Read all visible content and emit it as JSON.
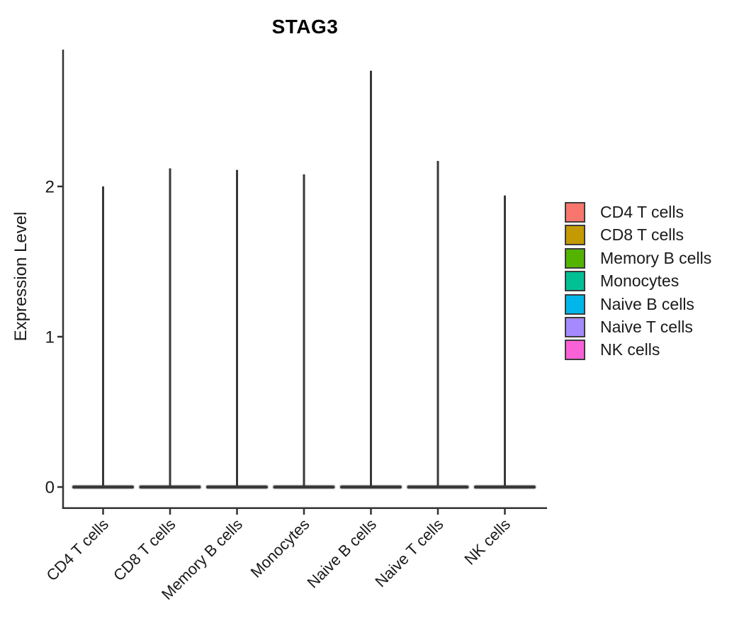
{
  "title": "STAG3",
  "y_axis": {
    "label": "Expression Level"
  },
  "chart_data": {
    "type": "violin",
    "title": "STAG3",
    "xlabel": "",
    "ylabel": "Expression Level",
    "categories": [
      "CD4 T cells",
      "CD8 T cells",
      "Memory B cells",
      "Monocytes",
      "Naive B cells",
      "Naive T cells",
      "NK cells"
    ],
    "yticks": [
      0,
      1,
      2
    ],
    "ylim": [
      0,
      2.92
    ],
    "grid": false,
    "legend_position": "right",
    "shape_note": "Each violin is almost entirely flat at expression 0 with a very thin density spike rising to its max",
    "series": [
      {
        "name": "CD4 T cells",
        "color": "#F8766D",
        "max": 2.0,
        "bulk_value": 0
      },
      {
        "name": "CD8 T cells",
        "color": "#C49A00",
        "max": 2.12,
        "bulk_value": 0
      },
      {
        "name": "Memory B cells",
        "color": "#53B400",
        "max": 2.11,
        "bulk_value": 0
      },
      {
        "name": "Monocytes",
        "color": "#00C094",
        "max": 2.08,
        "bulk_value": 0
      },
      {
        "name": "Naive B cells",
        "color": "#00B6EB",
        "max": 2.77,
        "bulk_value": 0
      },
      {
        "name": "Naive T cells",
        "color": "#A58AFF",
        "max": 2.17,
        "bulk_value": 0
      },
      {
        "name": "NK cells",
        "color": "#FB61D7",
        "max": 1.94,
        "bulk_value": 0
      }
    ],
    "ink_color": "#333333",
    "violin_stroke_color": "#383838"
  }
}
